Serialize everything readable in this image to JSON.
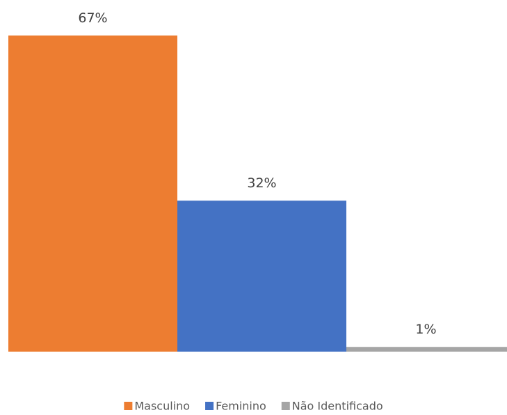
{
  "chart_data": {
    "type": "bar",
    "series": [
      {
        "name": "Masculino",
        "color": "#ed7d31",
        "values": [
          67
        ],
        "value_labels": [
          "67%"
        ]
      },
      {
        "name": "Feminino",
        "color": "#4472c4",
        "values": [
          32
        ],
        "value_labels": [
          "32%"
        ]
      },
      {
        "name": "Não Identificado",
        "color": "#a5a5a5",
        "values": [
          1
        ],
        "value_labels": [
          "1%"
        ]
      }
    ],
    "legend": "bottom"
  }
}
